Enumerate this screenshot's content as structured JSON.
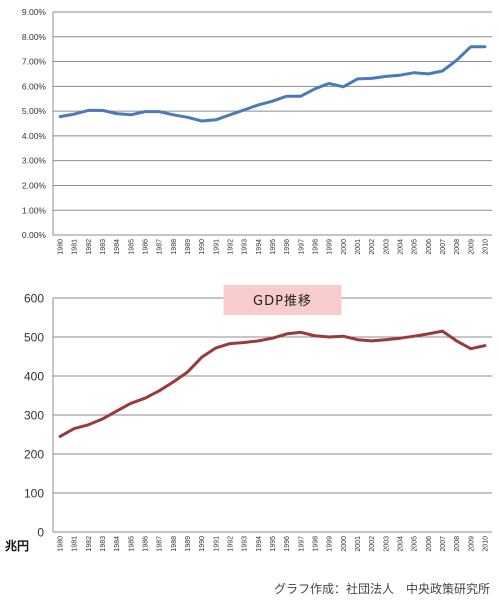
{
  "chart_data": [
    {
      "type": "line",
      "title": "",
      "xlabel": "",
      "ylabel": "",
      "x": [
        "1980",
        "1981",
        "1982",
        "1983",
        "1984",
        "1985",
        "1986",
        "1987",
        "1988",
        "1989",
        "1990",
        "1991",
        "1992",
        "1993",
        "1994",
        "1995",
        "1996",
        "1997",
        "1998",
        "1999",
        "2000",
        "2001",
        "2002",
        "2003",
        "2004",
        "2005",
        "2006",
        "2007",
        "2008",
        "2009",
        "2010"
      ],
      "series": [
        {
          "name": "",
          "color": "#4a7ab9",
          "values": [
            4.78,
            4.88,
            5.03,
            5.03,
            4.9,
            4.85,
            4.98,
            4.98,
            4.85,
            4.75,
            4.6,
            4.65,
            4.85,
            5.05,
            5.25,
            5.4,
            5.6,
            5.6,
            5.9,
            6.12,
            5.98,
            6.3,
            6.32,
            6.4,
            6.45,
            6.55,
            6.5,
            6.62,
            7.05,
            7.6,
            7.6
          ]
        }
      ],
      "ylim": [
        0,
        9
      ],
      "yticks": [
        "0.00%",
        "1.00%",
        "2.00%",
        "3.00%",
        "4.00%",
        "5.00%",
        "6.00%",
        "7.00%",
        "8.00%",
        "9.00%"
      ],
      "grid": true
    },
    {
      "type": "line",
      "title": "GDP推移",
      "xlabel": "",
      "ylabel": "兆円",
      "x": [
        "1980",
        "1981",
        "1982",
        "1983",
        "1984",
        "1985",
        "1986",
        "1987",
        "1988",
        "1989",
        "1990",
        "1991",
        "1992",
        "1993",
        "1994",
        "1995",
        "1996",
        "1997",
        "1998",
        "1999",
        "2000",
        "2001",
        "2002",
        "2003",
        "2004",
        "2005",
        "2006",
        "2007",
        "2008",
        "2009",
        "2010"
      ],
      "series": [
        {
          "name": "",
          "color": "#9b3a3a",
          "values": [
            245,
            265,
            275,
            290,
            310,
            330,
            343,
            362,
            385,
            410,
            448,
            472,
            483,
            486,
            490,
            497,
            508,
            512,
            503,
            500,
            502,
            493,
            490,
            493,
            497,
            502,
            508,
            515,
            490,
            470,
            478
          ]
        }
      ],
      "ylim": [
        0,
        600
      ],
      "yticks": [
        "0",
        "100",
        "200",
        "300",
        "400",
        "500",
        "600"
      ],
      "grid": true
    }
  ],
  "credit": "グラフ作成：社団法人　中央政策研究所"
}
